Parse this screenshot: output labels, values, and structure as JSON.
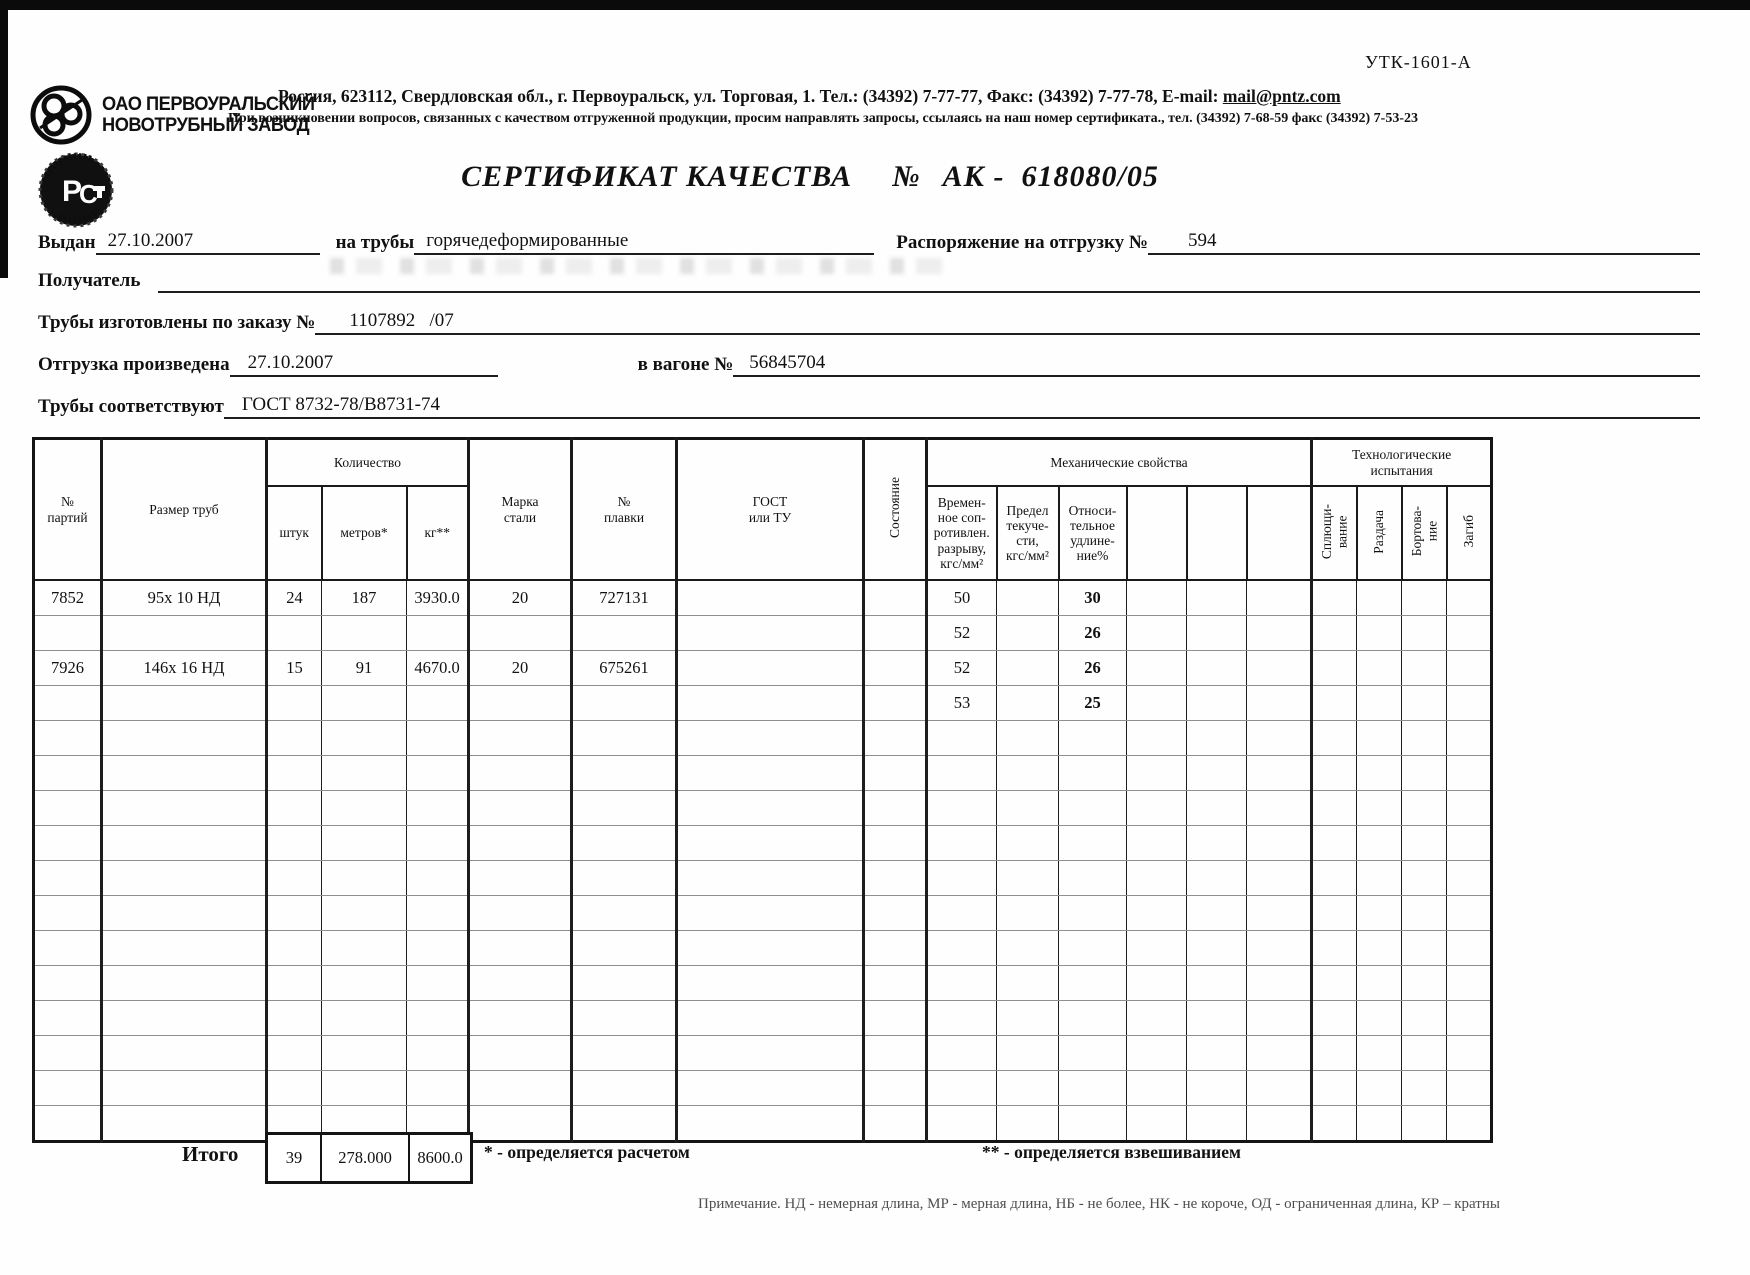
{
  "form_code": "УТК-1601-А",
  "letterhead": {
    "company_line1": "ОАО ПЕРВОУРАЛЬСКИЙ",
    "company_line2": "НОВОТРУБНЫЙ ЗАВОД",
    "address_pre": "Россия, 623112, Свердловская обл., г. Первоуральск, ул. Торговая, 1. Тел.: (34392) 7-77-77, Факс: (34392) 7-77-78,  E-mail: ",
    "email": "mail@pntz.com",
    "notice": "При возникновении вопросов, связанных с качеством отгруженной продукции, просим направлять запросы, ссылаясь на наш номер сертификата., тел. (34392) 7-68-59 факс (34392) 7-53-23",
    "stamp_letters": "РСТ"
  },
  "title": {
    "text": "СЕРТИФИКАТ КАЧЕСТВА",
    "number_sign": "№",
    "number": "АК -  618080/05"
  },
  "fields": {
    "issued_label": "Выдан",
    "issued_value": "27.10.2007",
    "pipes_label": "на трубы",
    "pipes_value": "горячедеформированные",
    "ship_order_label": "Распоряжение на отгрузку №",
    "ship_order_value": "594",
    "receiver_label": "Получатель",
    "receiver_value": "",
    "made_order_label": "Трубы изготовлены по заказу №",
    "made_order_value": "1107892   /07",
    "shipped_label": "Отгрузка произведена",
    "shipped_value": "27.10.2007",
    "wagon_label": "в вагоне №",
    "wagon_value": "56845704",
    "conform_label": "Трубы соответствуют",
    "conform_value": "ГОСТ 8732-78/В8731-74"
  },
  "table": {
    "headers": {
      "batch": "№\nпартий",
      "size": "Размер труб",
      "qty_group": "Количество",
      "pieces": "штук",
      "meters": "метров*",
      "kg": "кг**",
      "steel": "Марка\nстали",
      "melt": "№\nплавки",
      "gost": "ГОСТ\nили ТУ",
      "state": "Состояние",
      "mech_group": "Механические свойства",
      "tensile": "Времен-\nное соп-\nротивлен.\nразрыву,\nкгс/мм²",
      "yield": "Предел\nтекуче-\nсти,\nкгс/мм²",
      "elong": "Относи-\nтельное\nудлине-\nние%",
      "tech_group": "Технологические\nиспытания",
      "flatten": "Сплющи-\nвание",
      "expand": "Раздача",
      "flange": "Бортова-\nние",
      "bend": "Загиб"
    },
    "rows": [
      {
        "batch": "7852",
        "size": "95х 10 НД",
        "pieces": "24",
        "meters": "187",
        "kg": "3930.0",
        "steel": "20",
        "melt": "727131",
        "tensile": "50",
        "elong": "30"
      },
      {
        "tensile": "52",
        "elong": "26"
      },
      {
        "batch": "7926",
        "size": "146х 16 НД",
        "pieces": "15",
        "meters": "91",
        "kg": "4670.0",
        "steel": "20",
        "melt": "675261",
        "tensile": "52",
        "elong": "26"
      },
      {
        "tensile": "53",
        "elong": "25"
      },
      {},
      {},
      {},
      {},
      {},
      {},
      {},
      {},
      {},
      {},
      {},
      {}
    ],
    "totals": {
      "label": "Итого",
      "pieces": "39",
      "meters": "278.000",
      "kg": "8600.0"
    }
  },
  "footnotes": {
    "star": "* - определяется расчетом",
    "double_star": "** - определяется взвешиванием",
    "note": "Примечание. НД - немерная длина, МР - мерная длина, НБ - не более, НК - не короче, ОД - ограниченная длина, КР – кратны"
  }
}
